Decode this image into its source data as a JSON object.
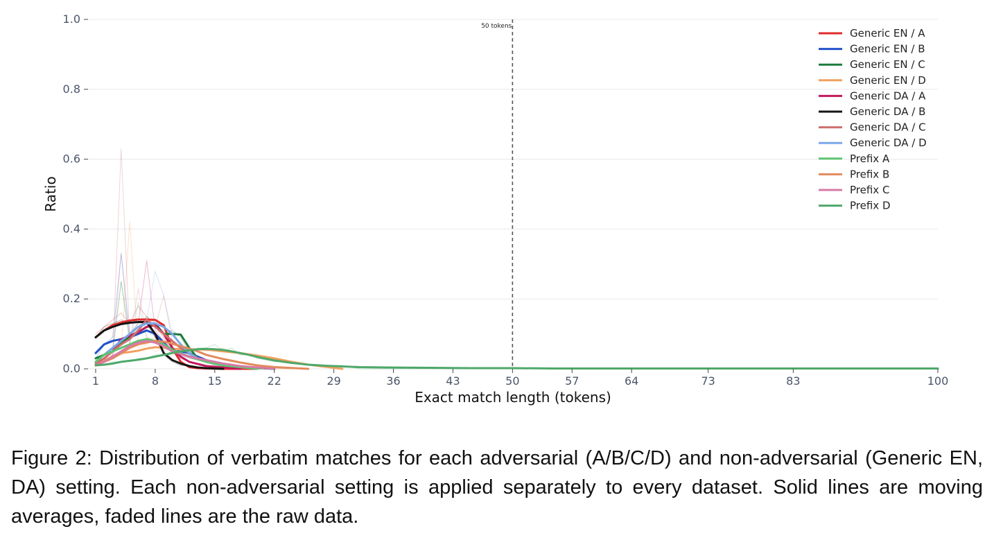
{
  "chart_data": {
    "type": "line",
    "xlabel": "Exact match length (tokens)",
    "ylabel": "Ratio",
    "xlim": [
      1,
      100
    ],
    "ylim": [
      0,
      1.0
    ],
    "x_ticks": [
      1,
      8,
      15,
      22,
      29,
      36,
      43,
      50,
      57,
      64,
      73,
      83,
      100
    ],
    "y_ticks": [
      0.0,
      0.2,
      0.4,
      0.6,
      0.8,
      1.0
    ],
    "y_tick_labels": [
      "0.0",
      "0.2",
      "0.4",
      "0.6",
      "0.8",
      "1.0"
    ],
    "grid": "horizontal",
    "legend_position": "top-right",
    "reference_line": {
      "x": 50,
      "label": "50 tokens",
      "style": "dashed"
    },
    "series": [
      {
        "name": "Generic EN / A",
        "color": "#e02b2b",
        "x": [
          1,
          2,
          3,
          4,
          5,
          6,
          7,
          8,
          9,
          10,
          11,
          12,
          13,
          14,
          16,
          20
        ],
        "y": [
          0.09,
          0.11,
          0.125,
          0.133,
          0.138,
          0.141,
          0.141,
          0.14,
          0.125,
          0.06,
          0.02,
          0.005,
          0.002,
          0.001,
          0.0,
          0.0
        ],
        "raw_y": [
          0.1,
          0.12,
          0.14,
          0.16,
          0.13,
          0.18,
          0.15,
          0.12,
          0.09,
          0.05,
          0.02,
          0.01,
          0.0,
          0.0,
          0.0,
          0.0
        ]
      },
      {
        "name": "Generic EN / B",
        "color": "#2150c9",
        "x": [
          1,
          2,
          3,
          4,
          5,
          6,
          7,
          8,
          9,
          10,
          11,
          12,
          13,
          14,
          15,
          16,
          18,
          22
        ],
        "y": [
          0.045,
          0.07,
          0.08,
          0.085,
          0.09,
          0.1,
          0.11,
          0.1,
          0.075,
          0.05,
          0.05,
          0.045,
          0.035,
          0.025,
          0.018,
          0.012,
          0.006,
          0.0
        ],
        "raw_y": [
          0.03,
          0.07,
          0.09,
          0.33,
          0.1,
          0.12,
          0.14,
          0.09,
          0.06,
          0.05,
          0.06,
          0.04,
          0.03,
          0.02,
          0.02,
          0.01,
          0.0,
          0.0
        ]
      },
      {
        "name": "Generic EN / C",
        "color": "#1e7b3c",
        "x": [
          1,
          2,
          3,
          4,
          5,
          6,
          7,
          8,
          9,
          10,
          11,
          12,
          13,
          15,
          18,
          22
        ],
        "y": [
          0.03,
          0.04,
          0.06,
          0.075,
          0.09,
          0.105,
          0.12,
          0.13,
          0.1,
          0.1,
          0.098,
          0.06,
          0.03,
          0.015,
          0.005,
          0.0
        ],
        "raw_y": [
          0.01,
          0.03,
          0.05,
          0.25,
          0.09,
          0.12,
          0.15,
          0.13,
          0.1,
          0.11,
          0.09,
          0.05,
          0.03,
          0.01,
          0.0,
          0.0
        ]
      },
      {
        "name": "Generic EN / D",
        "color": "#f0a05e",
        "x": [
          1,
          2,
          3,
          4,
          5,
          6,
          7,
          8,
          9,
          10,
          12,
          14,
          16,
          18,
          20,
          22,
          24,
          26,
          28,
          30
        ],
        "y": [
          0.01,
          0.025,
          0.035,
          0.045,
          0.048,
          0.052,
          0.058,
          0.062,
          0.06,
          0.057,
          0.056,
          0.055,
          0.05,
          0.045,
          0.038,
          0.03,
          0.02,
          0.012,
          0.006,
          0.0
        ],
        "raw_y": [
          0.01,
          0.02,
          0.04,
          0.05,
          0.42,
          0.06,
          0.07,
          0.05,
          0.06,
          0.05,
          0.06,
          0.05,
          0.06,
          0.04,
          0.04,
          0.03,
          0.02,
          0.01,
          0.01,
          0.0
        ]
      },
      {
        "name": "Generic DA / A",
        "color": "#c2185b",
        "x": [
          1,
          2,
          3,
          4,
          5,
          6,
          7,
          8,
          9,
          10,
          11,
          12,
          14,
          18
        ],
        "y": [
          0.015,
          0.03,
          0.05,
          0.085,
          0.095,
          0.105,
          0.12,
          0.125,
          0.1,
          0.06,
          0.035,
          0.02,
          0.008,
          0.0
        ],
        "raw_y": [
          0.01,
          0.02,
          0.04,
          0.08,
          0.1,
          0.13,
          0.31,
          0.11,
          0.08,
          0.05,
          0.03,
          0.02,
          0.01,
          0.0
        ]
      },
      {
        "name": "Generic DA / B",
        "color": "#141414",
        "x": [
          1,
          2,
          3,
          4,
          5,
          6,
          7,
          8,
          9,
          10,
          11,
          12,
          13,
          14,
          16
        ],
        "y": [
          0.09,
          0.11,
          0.12,
          0.128,
          0.132,
          0.134,
          0.134,
          0.1,
          0.045,
          0.025,
          0.015,
          0.008,
          0.004,
          0.002,
          0.0
        ],
        "raw_y": [
          0.09,
          0.12,
          0.13,
          0.14,
          0.13,
          0.14,
          0.13,
          0.09,
          0.04,
          0.02,
          0.01,
          0.01,
          0.0,
          0.0,
          0.0
        ]
      },
      {
        "name": "Generic DA / C",
        "color": "#cd6f6f",
        "x": [
          1,
          2,
          3,
          4,
          5,
          6,
          7,
          8,
          9,
          10,
          11,
          12,
          13,
          14,
          16,
          20
        ],
        "y": [
          0.015,
          0.03,
          0.05,
          0.07,
          0.085,
          0.11,
          0.14,
          0.12,
          0.1,
          0.08,
          0.06,
          0.045,
          0.03,
          0.02,
          0.01,
          0.0
        ],
        "raw_y": [
          0.01,
          0.02,
          0.04,
          0.63,
          0.09,
          0.11,
          0.15,
          0.12,
          0.21,
          0.08,
          0.06,
          0.04,
          0.03,
          0.02,
          0.01,
          0.0
        ]
      },
      {
        "name": "Generic DA / D",
        "color": "#7aa7e8",
        "x": [
          1,
          2,
          3,
          4,
          5,
          6,
          7,
          8,
          9,
          10,
          11,
          12,
          13,
          14,
          16,
          20
        ],
        "y": [
          0.02,
          0.04,
          0.06,
          0.08,
          0.1,
          0.12,
          0.13,
          0.13,
          0.12,
          0.1,
          0.07,
          0.045,
          0.03,
          0.02,
          0.01,
          0.0
        ],
        "raw_y": [
          0.01,
          0.03,
          0.05,
          0.07,
          0.1,
          0.13,
          0.14,
          0.28,
          0.21,
          0.1,
          0.07,
          0.04,
          0.03,
          0.02,
          0.01,
          0.0
        ]
      },
      {
        "name": "Prefix A",
        "color": "#5cc46f",
        "x": [
          1,
          2,
          3,
          4,
          5,
          6,
          7,
          8,
          9,
          10,
          12,
          14,
          16,
          20
        ],
        "y": [
          0.02,
          0.04,
          0.05,
          0.06,
          0.07,
          0.08,
          0.085,
          0.08,
          0.07,
          0.055,
          0.035,
          0.02,
          0.01,
          0.0
        ],
        "raw_y": [
          0.02,
          0.03,
          0.05,
          0.25,
          0.07,
          0.19,
          0.09,
          0.08,
          0.06,
          0.05,
          0.03,
          0.02,
          0.01,
          0.0
        ]
      },
      {
        "name": "Prefix B",
        "color": "#e28a5c",
        "x": [
          1,
          2,
          3,
          4,
          5,
          6,
          7,
          8,
          9,
          10,
          11,
          12,
          13,
          14,
          16,
          18,
          20,
          22,
          26
        ],
        "y": [
          0.01,
          0.02,
          0.03,
          0.045,
          0.06,
          0.07,
          0.075,
          0.08,
          0.078,
          0.072,
          0.065,
          0.058,
          0.05,
          0.04,
          0.028,
          0.018,
          0.01,
          0.005,
          0.0
        ],
        "raw_y": [
          0.01,
          0.02,
          0.03,
          0.04,
          0.06,
          0.07,
          0.08,
          0.09,
          0.07,
          0.07,
          0.06,
          0.05,
          0.05,
          0.04,
          0.03,
          0.02,
          0.01,
          0.0,
          0.0
        ]
      },
      {
        "name": "Prefix C",
        "color": "#d87aa8",
        "x": [
          1,
          2,
          3,
          4,
          5,
          6,
          7,
          8,
          9,
          10,
          12,
          14,
          16,
          18,
          22
        ],
        "y": [
          0.01,
          0.02,
          0.035,
          0.05,
          0.065,
          0.075,
          0.08,
          0.075,
          0.065,
          0.05,
          0.035,
          0.025,
          0.015,
          0.008,
          0.0
        ],
        "raw_y": [
          0.01,
          0.02,
          0.04,
          0.33,
          0.07,
          0.23,
          0.09,
          0.08,
          0.06,
          0.05,
          0.03,
          0.02,
          0.01,
          0.01,
          0.0
        ]
      },
      {
        "name": "Prefix D",
        "color": "#4ea86a",
        "x": [
          1,
          2,
          3,
          4,
          5,
          6,
          7,
          8,
          9,
          10,
          11,
          12,
          13,
          14,
          15,
          16,
          17,
          18,
          19,
          20,
          22,
          24,
          26,
          28,
          30,
          32,
          35,
          40,
          45,
          50,
          55,
          60,
          70,
          80,
          90,
          100
        ],
        "y": [
          0.01,
          0.012,
          0.015,
          0.02,
          0.023,
          0.026,
          0.03,
          0.035,
          0.04,
          0.045,
          0.05,
          0.053,
          0.056,
          0.057,
          0.056,
          0.054,
          0.05,
          0.045,
          0.04,
          0.034,
          0.024,
          0.017,
          0.012,
          0.009,
          0.007,
          0.005,
          0.004,
          0.003,
          0.002,
          0.002,
          0.001,
          0.001,
          0.001,
          0.001,
          0.001,
          0.001
        ],
        "raw_y": [
          0.01,
          0.01,
          0.02,
          0.02,
          0.02,
          0.03,
          0.03,
          0.04,
          0.04,
          0.05,
          0.05,
          0.05,
          0.06,
          0.06,
          0.07,
          0.05,
          0.06,
          0.04,
          0.04,
          0.03,
          0.02,
          0.02,
          0.01,
          0.01,
          0.01,
          0.0,
          0.0,
          0.0,
          0.0,
          0.0,
          0.0,
          0.0,
          0.0,
          0.0,
          0.0,
          0.0
        ]
      }
    ]
  },
  "caption": "Figure 2: Distribution of verbatim matches for each adversarial (A/B/C/D) and non-adversarial (Generic EN, DA) setting. Each non-adversarial setting is applied separately to every dataset. Solid lines are moving averages, faded lines are the raw data."
}
